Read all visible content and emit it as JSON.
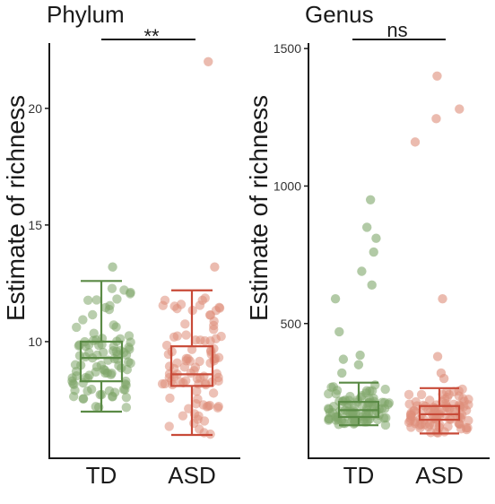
{
  "colors": {
    "TD": "#5a8a45",
    "ASD": "#c84a38",
    "TD_points": "#7fa66a",
    "ASD_points": "#de8e7a",
    "axis": "#1a1a1a"
  },
  "chart_data": [
    {
      "type": "box",
      "title": "Phylum",
      "ylabel": "Estimate of richness",
      "xlabel": "",
      "categories": [
        "TD",
        "ASD"
      ],
      "ylim": [
        5.0,
        22.8
      ],
      "yticks": [
        10,
        15,
        20
      ],
      "significance": "**",
      "boxes": [
        {
          "name": "TD",
          "whisker_low": 7.0,
          "q1": 8.3,
          "median": 9.3,
          "q3": 10.0,
          "whisker_high": 12.6
        },
        {
          "name": "ASD",
          "whisker_low": 6.0,
          "q1": 8.1,
          "median": 8.6,
          "q3": 9.8,
          "whisker_high": 12.2
        }
      ],
      "outliers": {
        "TD": [
          13.2
        ],
        "ASD": [
          13.2,
          22.0
        ]
      }
    },
    {
      "type": "box",
      "title": "Genus",
      "ylabel": "Estimate of richness",
      "xlabel": "",
      "categories": [
        "TD",
        "ASD"
      ],
      "ylim": [
        10,
        1520
      ],
      "yticks": [
        500,
        1000,
        1500
      ],
      "significance": "ns",
      "boxes": [
        {
          "name": "TD",
          "whisker_low": 130,
          "q1": 160,
          "median": 185,
          "q3": 215,
          "whisker_high": 285
        },
        {
          "name": "ASD",
          "whisker_low": 100,
          "q1": 150,
          "median": 170,
          "q3": 200,
          "whisker_high": 265
        }
      ],
      "outliers": {
        "TD": [
          320,
          350,
          370,
          385,
          470,
          590,
          640,
          690,
          760,
          810,
          850,
          950
        ],
        "ASD": [
          300,
          320,
          380,
          590,
          1160,
          1245,
          1280,
          1400
        ]
      }
    }
  ]
}
